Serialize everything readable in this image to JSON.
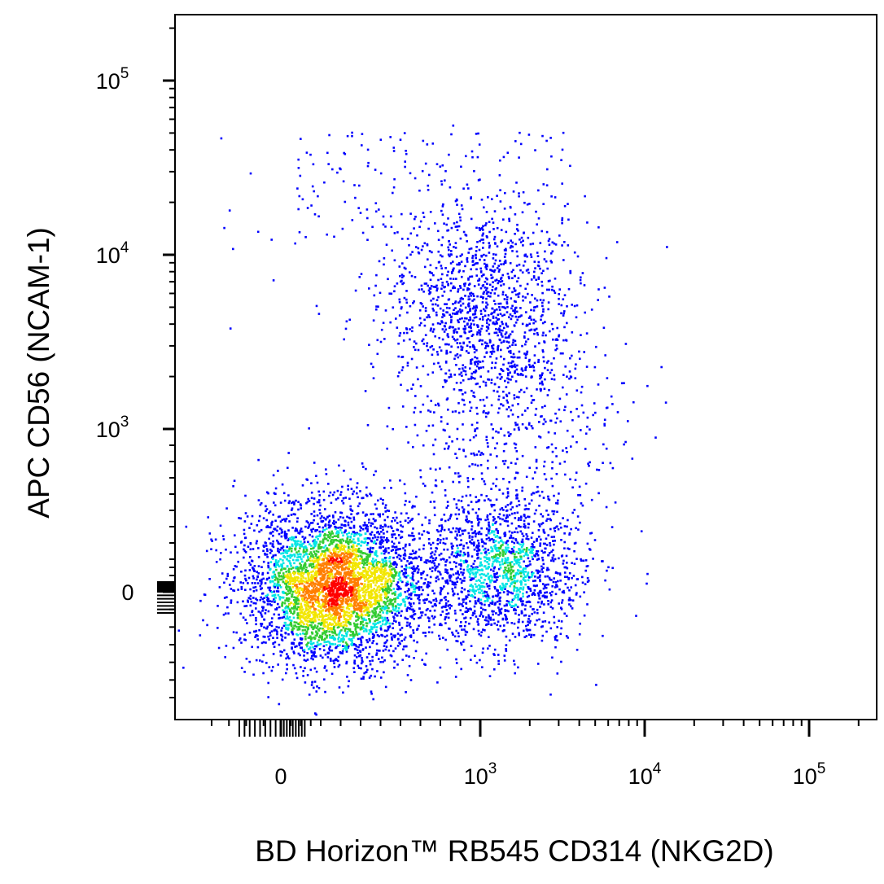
{
  "chart_data": {
    "type": "scatter",
    "subtype": "flow-cytometry-pseudocolor-density",
    "xlabel": "BD Horizon™ RB545  CD314 (NKG2D)",
    "ylabel": "APC CD56 (NCAM-1)",
    "x_scale": "biexponential",
    "y_scale": "biexponential",
    "xlim": [
      -200,
      200000
    ],
    "ylim": [
      -300,
      200000
    ],
    "x_tick_labels": [
      {
        "base": "0",
        "exp": "",
        "value": 0
      },
      {
        "base": "10",
        "exp": "3",
        "value": 1000
      },
      {
        "base": "10",
        "exp": "4",
        "value": 10000
      },
      {
        "base": "10",
        "exp": "5",
        "value": 100000
      }
    ],
    "y_tick_labels": [
      {
        "base": "0",
        "exp": "",
        "value": 0
      },
      {
        "base": "10",
        "exp": "3",
        "value": 1000
      },
      {
        "base": "10",
        "exp": "4",
        "value": 10000
      },
      {
        "base": "10",
        "exp": "5",
        "value": 100000
      }
    ],
    "grid": false,
    "legend": "none",
    "density_colors": [
      "#0000ff",
      "#00e5e5",
      "#33cc33",
      "#f2e600",
      "#ff7f00",
      "#ff0000"
    ],
    "populations": [
      {
        "x_center": 150,
        "y_center": 30,
        "events": 4200,
        "peak_color": "#ff0000"
      },
      {
        "x_center": 1200,
        "y_center": 50,
        "events": 1500,
        "peak_color": "#33cc33"
      },
      {
        "x_center": 1000,
        "y_center": 4500,
        "events": 1200,
        "peak_color": "#00e5e5"
      },
      {
        "x_center": 1200,
        "y_center": 1000,
        "events": 550,
        "peak_color": "#0000ff"
      }
    ]
  }
}
